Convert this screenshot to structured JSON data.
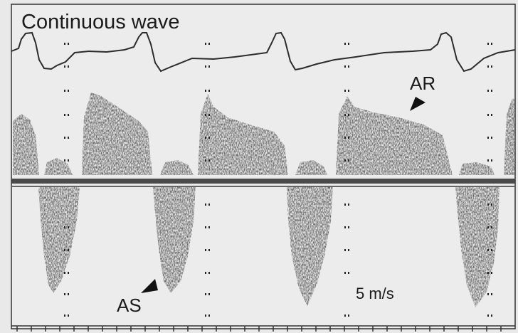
{
  "labels": {
    "mode": "Continuous wave",
    "ar": "AR",
    "as": "AS",
    "scale": "5 m/s"
  },
  "colors": {
    "background": "#e9e9e9",
    "frame": "#333333",
    "signal": "#3a3a3a",
    "baseline": "#4a4a4a"
  },
  "icons": {
    "ar_marker": "arrowhead-down-right",
    "as_marker": "arrowhead-up-right"
  }
}
